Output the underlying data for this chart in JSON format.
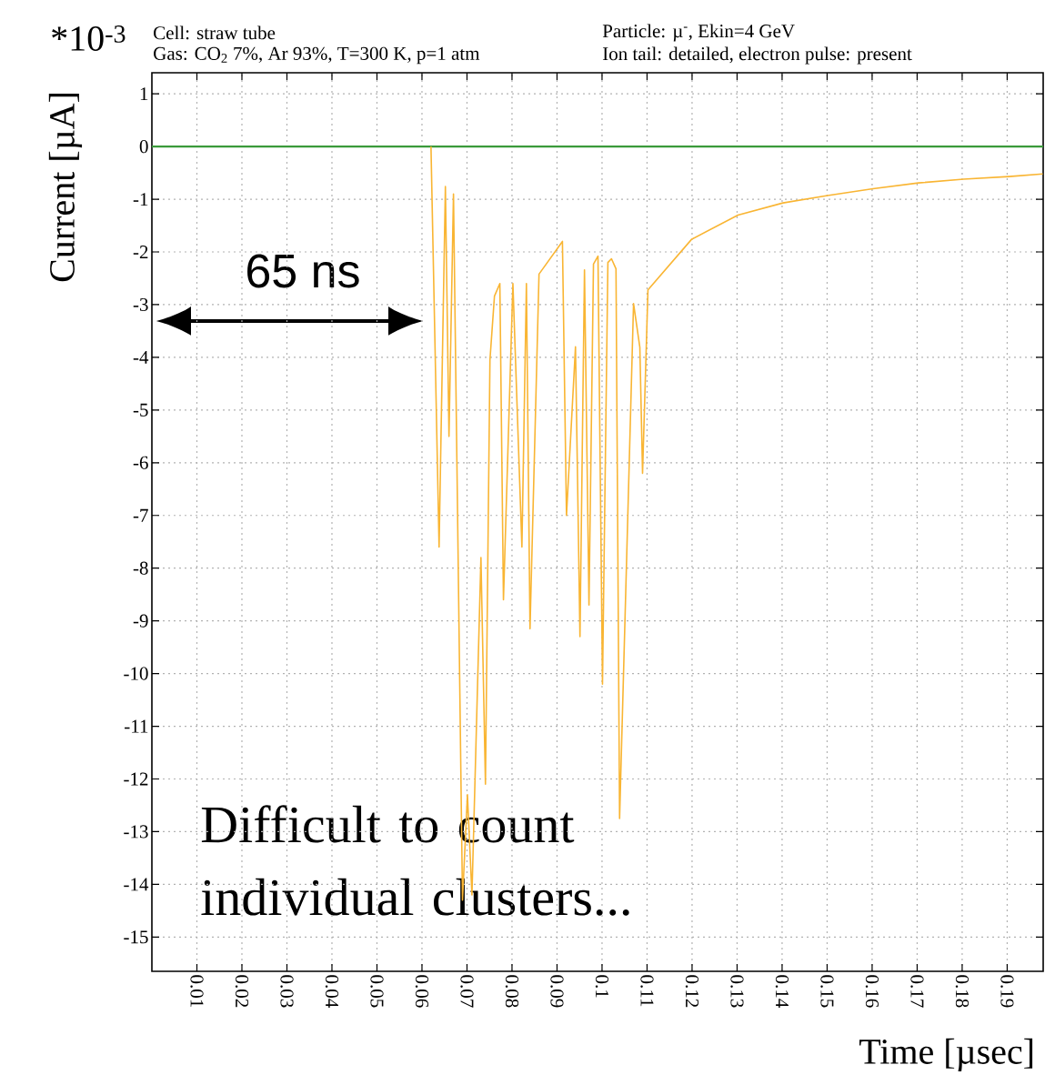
{
  "chart_data": {
    "type": "line",
    "xlabel": "Time [µsec]",
    "ylabel": "Current [µA]",
    "annotations": [
      "*10$^{-3}$",
      "Cell: straw tube",
      "Gas: CO$_{2}$ 7%, Ar 93%, T=300 K, p=1 atm",
      "Particle: µ$^{-}$, Ekin=4 GeV",
      "Ion tail: detailed, electron pulse: present",
      "65 ns",
      "Difficult to count individual clusters..."
    ],
    "xlim": [
      0,
      0.198
    ],
    "ylim": [
      -15.65,
      1.4
    ],
    "xticks": [
      0.01,
      0.02,
      0.03,
      0.04,
      0.05,
      0.06,
      0.07,
      0.08,
      0.09,
      0.1,
      0.11,
      0.12,
      0.13,
      0.14,
      0.15,
      0.16,
      0.17,
      0.18,
      0.19
    ],
    "yticks": [
      -15,
      -14,
      -13,
      -12,
      -11,
      -10,
      -9,
      -8,
      -7,
      -6,
      -5,
      -4,
      -3,
      -2,
      -1,
      0,
      1
    ],
    "grid": true,
    "line_style": "solid",
    "marker": "none",
    "series": [
      {
        "color": "#3a9a3a",
        "x": [
          0,
          0.198
        ],
        "values": [
          0,
          0
        ]
      },
      {
        "color": "#f9b533",
        "x": [
          0.062,
          0.0638,
          0.0652,
          0.066,
          0.067,
          0.069,
          0.0701,
          0.0711,
          0.0731,
          0.0741,
          0.0751,
          0.0761,
          0.0773,
          0.0781,
          0.0802,
          0.0822,
          0.0832,
          0.084,
          0.086,
          0.0912,
          0.0921,
          0.0941,
          0.0951,
          0.0961,
          0.0971,
          0.0981,
          0.0991,
          0.1001,
          0.1013,
          0.1021,
          0.1031,
          0.1039,
          0.107,
          0.1084,
          0.109,
          0.1102,
          0.1199,
          0.1302,
          0.1402,
          0.1501,
          0.1602,
          0.1703,
          0.1803,
          0.1904,
          0.1979
        ],
        "values": [
          0,
          -7.6,
          -0.76,
          -5.5,
          -0.9,
          -14.3,
          -12.3,
          -14.2,
          -7.8,
          -12.1,
          -4.05,
          -2.84,
          -2.6,
          -8.6,
          -2.6,
          -7.6,
          -2.6,
          -9.15,
          -2.42,
          -1.8,
          -7.0,
          -3.8,
          -9.3,
          -2.34,
          -8.7,
          -2.23,
          -2.08,
          -10.2,
          -2.2,
          -2.13,
          -2.32,
          -12.75,
          -2.98,
          -3.81,
          -6.2,
          -2.72,
          -1.76,
          -1.3,
          -1.07,
          -0.93,
          -0.8,
          -0.69,
          -0.62,
          -0.57,
          -0.52
        ]
      }
    ]
  }
}
